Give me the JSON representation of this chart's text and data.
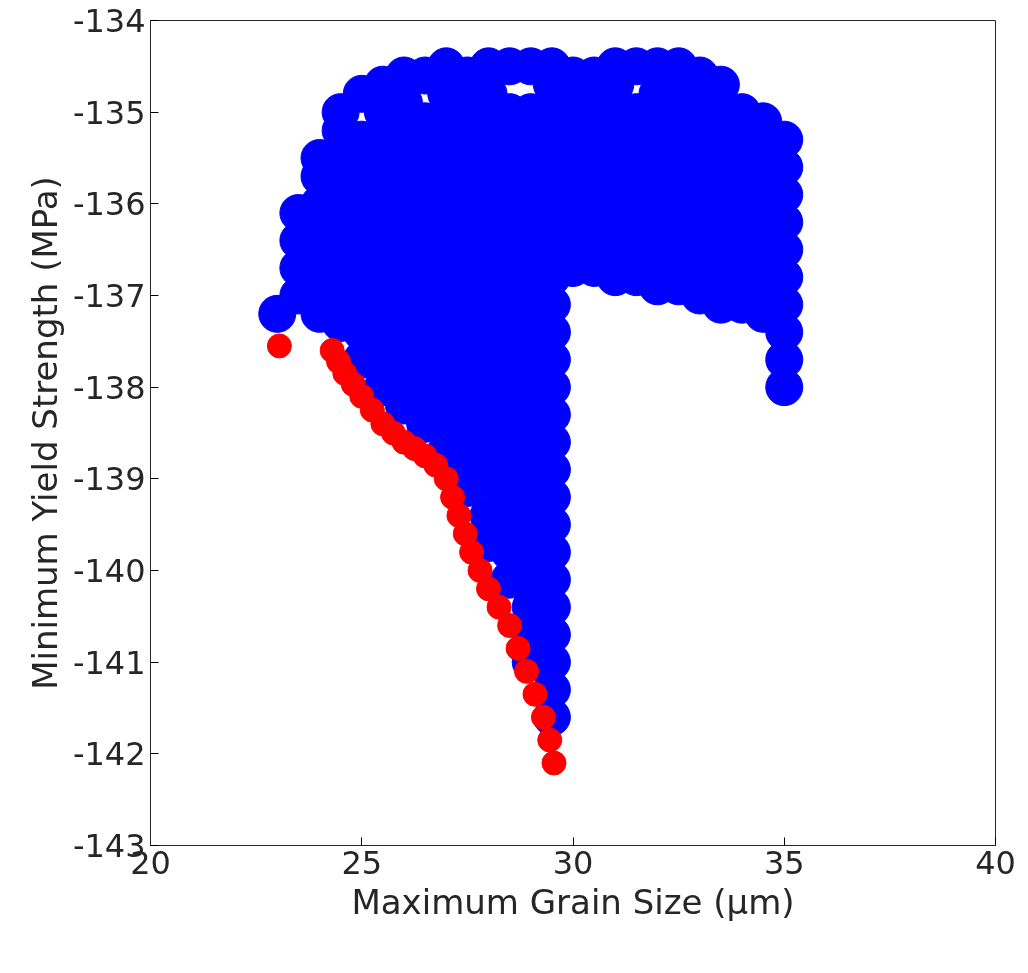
{
  "chart_data": {
    "type": "scatter",
    "xlabel": "Maximum Grain Size (μm)",
    "ylabel": "Minimum Yield Strength (MPa)",
    "xlim": [
      20,
      40
    ],
    "ylim": [
      -143,
      -134
    ],
    "xticks": [
      20,
      25,
      30,
      35,
      40
    ],
    "yticks": [
      -143,
      -142,
      -141,
      -140,
      -139,
      -138,
      -137,
      -136,
      -135,
      -134
    ],
    "grid": false,
    "marker": "circle",
    "series": [
      {
        "color": "#0000ff",
        "x": [
          23.0,
          23.5,
          23.5,
          23.5,
          23.5,
          24.0,
          24.0,
          24.0,
          24.0,
          24.0,
          24.0,
          24.0,
          24.5,
          24.5,
          24.5,
          24.5,
          24.5,
          24.5,
          24.5,
          24.5,
          24.5,
          25.0,
          25.0,
          25.0,
          25.0,
          25.0,
          25.0,
          25.0,
          25.0,
          25.0,
          25.0,
          25.5,
          25.5,
          25.5,
          25.5,
          25.5,
          25.5,
          25.5,
          25.5,
          25.5,
          25.5,
          25.5,
          25.5,
          26.0,
          26.0,
          26.0,
          26.0,
          26.0,
          26.0,
          26.0,
          26.0,
          26.0,
          26.0,
          26.0,
          26.0,
          26.0,
          26.5,
          26.5,
          26.5,
          26.5,
          26.5,
          26.5,
          26.5,
          26.5,
          26.5,
          26.5,
          26.5,
          26.5,
          26.5,
          27.0,
          27.0,
          27.0,
          27.0,
          27.0,
          27.0,
          27.0,
          27.0,
          27.0,
          27.0,
          27.0,
          27.0,
          27.0,
          27.0,
          27.0,
          27.5,
          27.5,
          27.5,
          27.5,
          27.5,
          27.5,
          27.5,
          27.5,
          27.5,
          27.5,
          27.5,
          27.5,
          27.5,
          27.5,
          27.5,
          27.5,
          28.0,
          28.0,
          28.0,
          28.0,
          28.0,
          28.0,
          28.0,
          28.0,
          28.0,
          28.0,
          28.0,
          28.0,
          28.0,
          28.0,
          28.0,
          28.0,
          28.0,
          28.0,
          28.5,
          28.5,
          28.5,
          28.5,
          28.5,
          28.5,
          28.5,
          28.5,
          28.5,
          28.5,
          28.5,
          28.5,
          28.5,
          28.5,
          28.5,
          28.5,
          28.5,
          28.5,
          28.5,
          29.0,
          29.0,
          29.0,
          29.0,
          29.0,
          29.0,
          29.0,
          29.0,
          29.0,
          29.0,
          29.0,
          29.0,
          29.0,
          29.0,
          29.0,
          29.0,
          29.0,
          29.0,
          29.0,
          29.0,
          29.0,
          29.0,
          29.5,
          29.5,
          29.5,
          29.5,
          29.5,
          29.5,
          29.5,
          29.5,
          29.5,
          29.5,
          29.5,
          29.5,
          29.5,
          29.5,
          29.5,
          29.5,
          29.5,
          29.5,
          29.5,
          29.5,
          29.5,
          29.5,
          29.5,
          29.5,
          29.5,
          30.0,
          30.0,
          30.0,
          30.0,
          30.0,
          30.0,
          30.0,
          30.0,
          30.5,
          30.5,
          30.5,
          30.5,
          30.5,
          30.5,
          30.5,
          30.5,
          31.0,
          31.0,
          31.0,
          31.0,
          31.0,
          31.0,
          31.0,
          31.0,
          31.0,
          31.5,
          31.5,
          31.5,
          31.5,
          31.5,
          31.5,
          31.5,
          31.5,
          32.0,
          32.0,
          32.0,
          32.0,
          32.0,
          32.0,
          32.0,
          32.0,
          32.0,
          32.5,
          32.5,
          32.5,
          32.5,
          32.5,
          32.5,
          32.5,
          32.5,
          32.5,
          33.0,
          33.0,
          33.0,
          33.0,
          33.0,
          33.0,
          33.0,
          33.0,
          33.0,
          33.5,
          33.5,
          33.5,
          33.5,
          33.5,
          33.5,
          33.5,
          33.5,
          33.5,
          34.0,
          34.0,
          34.0,
          34.0,
          34.0,
          34.0,
          34.0,
          34.0,
          34.5,
          34.5,
          34.5,
          34.5,
          34.5,
          34.5,
          34.5,
          34.5,
          35.0,
          35.0,
          35.0,
          35.0,
          35.0,
          35.0,
          35.0,
          35.0,
          35.0,
          35.0
        ],
        "values": [
          -137.2,
          -137.0,
          -136.7,
          -136.4,
          -136.1,
          -137.2,
          -136.9,
          -136.6,
          -136.3,
          -136.0,
          -135.7,
          -135.5,
          -137.3,
          -137.0,
          -136.7,
          -136.4,
          -136.1,
          -135.8,
          -135.5,
          -135.2,
          -135.0,
          -137.7,
          -137.4,
          -137.1,
          -136.8,
          -136.5,
          -136.2,
          -135.9,
          -135.6,
          -135.3,
          -134.8,
          -138.0,
          -137.7,
          -137.4,
          -137.1,
          -136.8,
          -136.5,
          -136.2,
          -135.9,
          -135.6,
          -135.3,
          -135.0,
          -134.7,
          -138.2,
          -137.9,
          -137.6,
          -137.3,
          -137.0,
          -136.7,
          -136.4,
          -136.1,
          -135.8,
          -135.5,
          -135.2,
          -134.9,
          -134.6,
          -138.4,
          -138.1,
          -137.8,
          -137.5,
          -137.2,
          -136.9,
          -136.6,
          -136.3,
          -136.0,
          -135.7,
          -135.4,
          -135.1,
          -134.6,
          -138.7,
          -138.4,
          -138.1,
          -137.8,
          -137.5,
          -137.2,
          -136.9,
          -136.6,
          -136.3,
          -136.0,
          -135.7,
          -135.4,
          -135.1,
          -134.8,
          -134.5,
          -139.1,
          -138.8,
          -138.5,
          -138.2,
          -137.9,
          -137.6,
          -137.3,
          -137.0,
          -136.7,
          -136.4,
          -136.1,
          -135.8,
          -135.5,
          -135.2,
          -134.9,
          -134.6,
          -139.7,
          -139.4,
          -139.0,
          -138.7,
          -138.4,
          -138.1,
          -137.8,
          -137.5,
          -137.2,
          -136.9,
          -136.6,
          -136.3,
          -136.0,
          -135.7,
          -135.4,
          -135.1,
          -134.8,
          -134.5,
          -140.1,
          -139.8,
          -139.5,
          -139.2,
          -138.9,
          -138.6,
          -138.3,
          -138.0,
          -137.7,
          -137.4,
          -137.1,
          -136.8,
          -136.5,
          -136.2,
          -135.9,
          -135.6,
          -135.3,
          -135.0,
          -134.5,
          -141.0,
          -140.7,
          -140.4,
          -140.1,
          -139.8,
          -139.5,
          -139.2,
          -138.9,
          -138.6,
          -138.3,
          -138.0,
          -137.7,
          -137.4,
          -137.1,
          -136.8,
          -136.5,
          -136.2,
          -135.9,
          -135.6,
          -135.3,
          -135.0,
          -134.5,
          -141.6,
          -141.3,
          -141.0,
          -140.7,
          -140.4,
          -140.1,
          -139.8,
          -139.5,
          -139.2,
          -138.9,
          -138.6,
          -138.3,
          -138.0,
          -137.7,
          -137.4,
          -137.1,
          -136.8,
          -136.5,
          -136.2,
          -135.9,
          -135.6,
          -135.3,
          -135.0,
          -134.7,
          -134.5,
          -136.7,
          -136.4,
          -136.1,
          -135.8,
          -135.5,
          -135.2,
          -134.9,
          -134.6,
          -136.7,
          -136.4,
          -136.1,
          -135.8,
          -135.5,
          -135.2,
          -134.9,
          -134.6,
          -136.8,
          -136.5,
          -136.2,
          -135.9,
          -135.6,
          -135.3,
          -135.0,
          -134.7,
          -134.5,
          -136.8,
          -136.5,
          -136.2,
          -135.9,
          -135.6,
          -135.3,
          -135.0,
          -134.5,
          -136.9,
          -136.6,
          -136.3,
          -136.0,
          -135.7,
          -135.4,
          -135.1,
          -134.8,
          -134.5,
          -136.9,
          -136.6,
          -136.3,
          -136.0,
          -135.7,
          -135.4,
          -135.1,
          -134.8,
          -134.5,
          -137.0,
          -136.7,
          -136.4,
          -136.1,
          -135.8,
          -135.5,
          -135.2,
          -134.9,
          -134.6,
          -137.1,
          -136.8,
          -136.5,
          -136.2,
          -135.9,
          -135.6,
          -135.3,
          -135.0,
          -134.7,
          -137.1,
          -136.8,
          -136.5,
          -136.2,
          -135.9,
          -135.6,
          -135.3,
          -135.0,
          -137.2,
          -136.9,
          -136.6,
          -136.3,
          -136.0,
          -135.7,
          -135.4,
          -135.1,
          -138.0,
          -137.7,
          -137.4,
          -137.1,
          -136.8,
          -136.5,
          -136.2,
          -135.9,
          -135.6,
          -135.3
        ]
      },
      {
        "color": "#ff0000",
        "x": [
          23.05,
          24.3,
          24.45,
          24.6,
          24.8,
          25.0,
          25.25,
          25.5,
          25.75,
          26.0,
          26.25,
          26.5,
          26.75,
          27.0,
          27.15,
          27.3,
          27.45,
          27.6,
          27.8,
          28.0,
          28.25,
          28.5,
          28.7,
          28.9,
          29.1,
          29.3,
          29.45,
          29.55
        ],
        "values": [
          -137.55,
          -137.6,
          -137.72,
          -137.85,
          -137.97,
          -138.1,
          -138.25,
          -138.4,
          -138.5,
          -138.6,
          -138.67,
          -138.75,
          -138.85,
          -139.0,
          -139.2,
          -139.4,
          -139.6,
          -139.8,
          -140.0,
          -140.2,
          -140.4,
          -140.6,
          -140.85,
          -141.1,
          -141.35,
          -141.6,
          -141.85,
          -142.1
        ]
      }
    ]
  }
}
